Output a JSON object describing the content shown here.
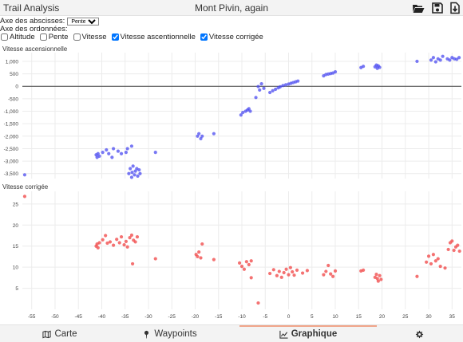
{
  "header": {
    "app_title": "Trail Analysis",
    "doc_title": "Mont Pivin, again",
    "icons": [
      "folder-open-icon",
      "save-icon",
      "export-icon"
    ]
  },
  "controls": {
    "x_axis_label": "Axe des abscisses:",
    "x_axis_selected": "Pente",
    "y_axis_label": "Axe des ordonnées:",
    "options": [
      {
        "label": "Altitude",
        "checked": false
      },
      {
        "label": "Pente",
        "checked": false
      },
      {
        "label": "Vitesse",
        "checked": false
      },
      {
        "label": "Vitesse ascentionnelle",
        "checked": true
      },
      {
        "label": "Vitesse corrigée",
        "checked": true
      }
    ]
  },
  "tabs": [
    {
      "label": "Carte",
      "icon": "map-icon"
    },
    {
      "label": "Waypoints",
      "icon": "pin-icon"
    },
    {
      "label": "Graphique",
      "icon": "chart-icon",
      "active": true
    },
    {
      "label": "",
      "icon": "gear-icon"
    }
  ],
  "chart_data": [
    {
      "type": "scatter",
      "title": "Vitesse ascensionnelle",
      "color": "#4b4bf0",
      "xlim": [
        -57,
        37
      ],
      "ylim": [
        -3700,
        1350
      ],
      "yticks": [
        1000,
        500,
        0,
        -500,
        -1000,
        -1500,
        -2000,
        -2500,
        -3000,
        -3500
      ],
      "ytick_labels": [
        "1,000",
        "500",
        "0",
        "-500",
        "-1,000",
        "-1,500",
        "-2,000",
        "-2,500",
        "-3,000",
        "-3,500"
      ],
      "zero_line": true,
      "points": [
        [
          -56.5,
          -3550
        ],
        [
          -41.2,
          -2750
        ],
        [
          -41,
          -2850
        ],
        [
          -40.8,
          -2700
        ],
        [
          -40.5,
          -2800
        ],
        [
          -39.8,
          -2650
        ],
        [
          -39,
          -2550
        ],
        [
          -38.5,
          -2700
        ],
        [
          -37.8,
          -2850
        ],
        [
          -37.5,
          -2500
        ],
        [
          -36.5,
          -2600
        ],
        [
          -35.8,
          -2700
        ],
        [
          -34.8,
          -2650
        ],
        [
          -34.5,
          -2500
        ],
        [
          -33.6,
          -2400
        ],
        [
          -34.2,
          -3500
        ],
        [
          -33.9,
          -3300
        ],
        [
          -33.6,
          -3650
        ],
        [
          -33.5,
          -3450
        ],
        [
          -33.3,
          -3200
        ],
        [
          -33,
          -3550
        ],
        [
          -32.8,
          -3400
        ],
        [
          -32.5,
          -3300
        ],
        [
          -32.3,
          -3600
        ],
        [
          -32,
          -3350
        ],
        [
          -31.8,
          -3500
        ],
        [
          -28.5,
          -2650
        ],
        [
          -19.5,
          -2000
        ],
        [
          -19.2,
          -1900
        ],
        [
          -18.8,
          -2100
        ],
        [
          -18.5,
          -2000
        ],
        [
          -16,
          -1900
        ],
        [
          -10.2,
          -1150
        ],
        [
          -9.8,
          -1050
        ],
        [
          -9.2,
          -1000
        ],
        [
          -8.8,
          -950
        ],
        [
          -8.5,
          -900
        ],
        [
          -8.2,
          -1000
        ],
        [
          -7,
          -450
        ],
        [
          -6.5,
          -10
        ],
        [
          -5.8,
          100
        ],
        [
          -6.2,
          -150
        ],
        [
          -5.3,
          -80
        ],
        [
          -4,
          -250
        ],
        [
          -3.4,
          -180
        ],
        [
          -2.8,
          -120
        ],
        [
          -2.2,
          -60
        ],
        [
          -1.8,
          -20
        ],
        [
          -1.2,
          30
        ],
        [
          -0.6,
          60
        ],
        [
          0,
          90
        ],
        [
          0.5,
          120
        ],
        [
          1,
          150
        ],
        [
          1.5,
          180
        ],
        [
          2,
          210
        ],
        [
          7.5,
          420
        ],
        [
          8,
          470
        ],
        [
          8.5,
          490
        ],
        [
          9,
          510
        ],
        [
          9.5,
          530
        ],
        [
          10,
          580
        ],
        [
          15.5,
          750
        ],
        [
          16,
          800
        ],
        [
          18.5,
          780
        ],
        [
          18.8,
          850
        ],
        [
          19,
          720
        ],
        [
          19.2,
          820
        ],
        [
          19.5,
          760
        ],
        [
          27.5,
          1000
        ],
        [
          30.5,
          1050
        ],
        [
          31,
          1150
        ],
        [
          31.5,
          980
        ],
        [
          32,
          1100
        ],
        [
          32.5,
          1050
        ],
        [
          33,
          1200
        ],
        [
          34,
          1100
        ],
        [
          34.5,
          1050
        ],
        [
          35,
          1150
        ],
        [
          35.5,
          1100
        ],
        [
          36,
          1080
        ],
        [
          36.5,
          1150
        ]
      ]
    },
    {
      "type": "scatter",
      "title": "Vitesse corrigée",
      "color": "#f04343",
      "xlim": [
        -57,
        37
      ],
      "ylim": [
        0,
        28
      ],
      "yticks": [
        25,
        20,
        15,
        10,
        5
      ],
      "ytick_labels": [
        "25",
        "20",
        "15",
        "10",
        "5"
      ],
      "xticks": [
        -55,
        -50,
        -45,
        -40,
        -35,
        -30,
        -25,
        -20,
        -15,
        -10,
        -5,
        0,
        5,
        10,
        15,
        20,
        25,
        30,
        35
      ],
      "xtick_labels": [
        "-55",
        "-50",
        "-45",
        "-40",
        "-35",
        "-30",
        "-25",
        "-20",
        "-15",
        "-10",
        "-5",
        "0",
        "5",
        "10",
        "15",
        "20",
        "25",
        "30",
        "35"
      ],
      "points": [
        [
          -56.5,
          26.8
        ],
        [
          -41.2,
          15
        ],
        [
          -41,
          15.5
        ],
        [
          -40.8,
          14.6
        ],
        [
          -40.5,
          15.8
        ],
        [
          -39.8,
          16.5
        ],
        [
          -39.2,
          17.5
        ],
        [
          -38.8,
          15.7
        ],
        [
          -38.2,
          16
        ],
        [
          -37.5,
          15.2
        ],
        [
          -36.8,
          16.6
        ],
        [
          -36.2,
          15.8
        ],
        [
          -35.8,
          17.2
        ],
        [
          -35.2,
          15.3
        ],
        [
          -34.8,
          16.1
        ],
        [
          -34.5,
          14.8
        ],
        [
          -34,
          17
        ],
        [
          -33.6,
          17.6
        ],
        [
          -33.2,
          16.4
        ],
        [
          -32.8,
          16
        ],
        [
          -32.4,
          17.2
        ],
        [
          -33.4,
          10.8
        ],
        [
          -28.5,
          12
        ],
        [
          -19.8,
          13
        ],
        [
          -19.5,
          12.5
        ],
        [
          -19.2,
          13.6
        ],
        [
          -18.8,
          12.2
        ],
        [
          -18.5,
          15.5
        ],
        [
          -16,
          11.8
        ],
        [
          -10.5,
          11
        ],
        [
          -10,
          10.2
        ],
        [
          -9.5,
          9.5
        ],
        [
          -9,
          11.3
        ],
        [
          -8.5,
          10.6
        ],
        [
          -8,
          11.5
        ],
        [
          -8,
          7.5
        ],
        [
          -6.5,
          1.5
        ],
        [
          -4,
          8.5
        ],
        [
          -3.2,
          9.4
        ],
        [
          -2.5,
          8
        ],
        [
          -2,
          9
        ],
        [
          -1.5,
          7.6
        ],
        [
          -1,
          8.7
        ],
        [
          -0.5,
          9.5
        ],
        [
          0,
          8.2
        ],
        [
          0.4,
          9.9
        ],
        [
          0.8,
          8.9
        ],
        [
          1.2,
          8.1
        ],
        [
          1.8,
          9.3
        ],
        [
          3,
          8.6
        ],
        [
          4,
          9.2
        ],
        [
          7.5,
          8.2
        ],
        [
          8,
          9
        ],
        [
          8.5,
          10.4
        ],
        [
          9,
          8.4
        ],
        [
          9.5,
          7.8
        ],
        [
          10,
          9.1
        ],
        [
          15.5,
          9.1
        ],
        [
          16,
          9.3
        ],
        [
          18.5,
          7.6
        ],
        [
          18.8,
          8.3
        ],
        [
          19,
          7.3
        ],
        [
          19.2,
          6.7
        ],
        [
          19.5,
          8
        ],
        [
          19.8,
          7.1
        ],
        [
          27.5,
          7.8
        ],
        [
          29.5,
          11.2
        ],
        [
          30,
          12.6
        ],
        [
          30.5,
          10.8
        ],
        [
          31,
          13
        ],
        [
          31.5,
          11.5
        ],
        [
          32,
          12
        ],
        [
          32.5,
          10.2
        ],
        [
          33.5,
          9.8
        ],
        [
          34.2,
          14.2
        ],
        [
          34.6,
          15.8
        ],
        [
          35,
          16.2
        ],
        [
          35.4,
          14
        ],
        [
          35.8,
          14.8
        ],
        [
          36.2,
          15.2
        ],
        [
          36.6,
          13.8
        ]
      ]
    }
  ]
}
